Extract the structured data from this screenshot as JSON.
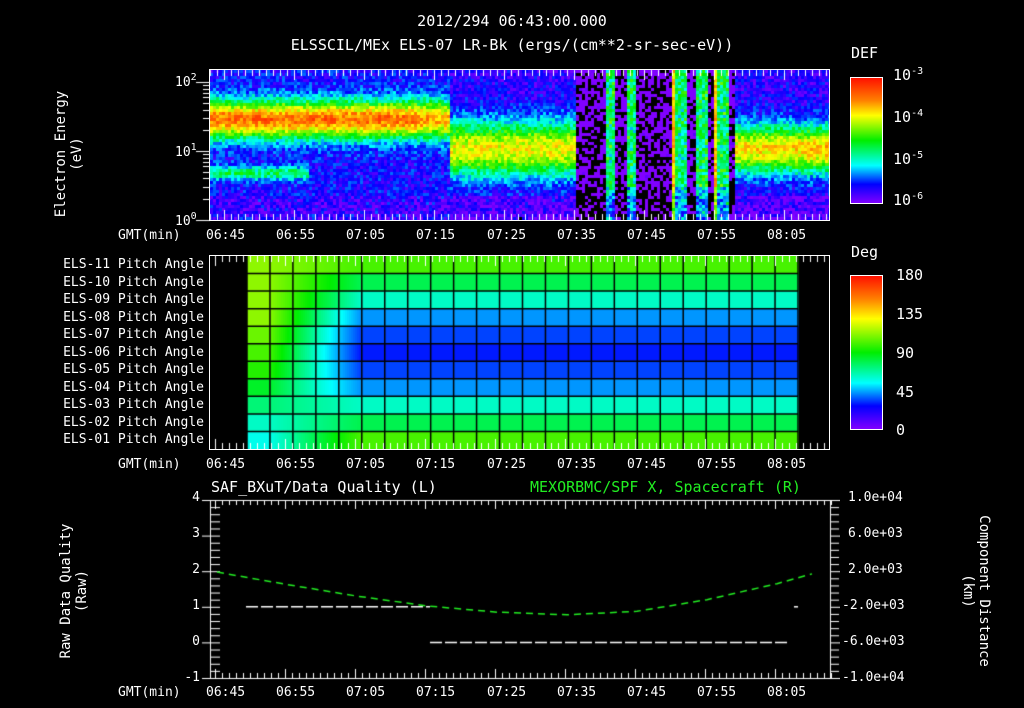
{
  "header": {
    "timestamp": "2012/294 06:43:00.000",
    "title": "ELSSCIL/MEx ELS-07 LR-Bk  (ergs/(cm**2-sr-sec-eV))"
  },
  "panel1": {
    "ylabel_line1": "Electron Energy",
    "ylabel_line2": "(eV)",
    "yticks": [
      "10",
      "10",
      "10"
    ],
    "ytick_exps": [
      "2",
      "1",
      "0"
    ],
    "colorbar_title": "DEF",
    "colorbar_ticks": [
      "10",
      "10",
      "10",
      "10"
    ],
    "colorbar_exps": [
      "-3",
      "-4",
      "-5",
      "-6"
    ],
    "xlabel": "GMT(min)",
    "xticks": [
      "06:45",
      "06:55",
      "07:05",
      "07:15",
      "07:25",
      "07:35",
      "07:45",
      "07:55",
      "08:05"
    ]
  },
  "panel2": {
    "rows": [
      "ELS-11 Pitch Angle",
      "ELS-10 Pitch Angle",
      "ELS-09 Pitch Angle",
      "ELS-08 Pitch Angle",
      "ELS-07 Pitch Angle",
      "ELS-06 Pitch Angle",
      "ELS-05 Pitch Angle",
      "ELS-04 Pitch Angle",
      "ELS-03 Pitch Angle",
      "ELS-02 Pitch Angle",
      "ELS-01 Pitch Angle"
    ],
    "colorbar_title": "Deg",
    "colorbar_ticks": [
      "180",
      "135",
      "90",
      "45",
      "0"
    ],
    "xlabel": "GMT(min)",
    "xticks": [
      "06:45",
      "06:55",
      "07:05",
      "07:15",
      "07:25",
      "07:35",
      "07:45",
      "07:55",
      "08:05"
    ]
  },
  "panel3": {
    "left_title": "SAF_BXuT/Data Quality (L)",
    "right_title": "MEXORBMC/SPF X, Spacecraft (R)",
    "ylabel_left_line1": "Raw Data Quality",
    "ylabel_left_line2": "(Raw)",
    "ylabel_right_line1": "Component Distance",
    "ylabel_right_line2": "(km)",
    "yticks_left": [
      "4",
      "3",
      "2",
      "1",
      "0",
      "-1"
    ],
    "yticks_right": [
      "1.0e+04",
      "6.0e+03",
      "2.0e+03",
      "-2.0e+03",
      "-6.0e+03",
      "-1.0e+04"
    ],
    "xlabel": "GMT(min)",
    "xticks": [
      "06:45",
      "06:55",
      "07:05",
      "07:15",
      "07:25",
      "07:35",
      "07:45",
      "07:55",
      "08:05"
    ]
  },
  "colors": {
    "background": "#000000",
    "axis": "#ffffff",
    "right_series": "#22ee22",
    "left_series": "#ffffff"
  },
  "chart_data": [
    {
      "type": "heatmap",
      "title": "ELSSCIL/MEx ELS-07 LR-Bk (ergs/(cm**2-sr-sec-eV))",
      "subtitle": "2012/294 06:43:00.000",
      "xlabel": "GMT(min)",
      "ylabel": "Electron Energy (eV)",
      "yscale": "log",
      "ylim": [
        1,
        150
      ],
      "xticks": [
        "06:45",
        "06:55",
        "07:05",
        "07:15",
        "07:25",
        "07:35",
        "07:45",
        "07:55",
        "08:05"
      ],
      "colorbar": {
        "label": "DEF",
        "scale": "log",
        "range": [
          1e-06,
          0.001
        ]
      },
      "features": [
        {
          "x_range": [
            "06:43",
            "07:17"
          ],
          "peak_energy_eV": 30,
          "level": "~3e-4 (orange/yellow)"
        },
        {
          "x_range": [
            "06:43",
            "06:57"
          ],
          "secondary_band_energy_eV": 5,
          "level": "~5e-5 (green)"
        },
        {
          "x_range": [
            "07:17",
            "07:35"
          ],
          "energy_range_eV": [
            4,
            40
          ],
          "level": "~1e-4 (green)"
        },
        {
          "x_range": [
            "07:39",
            "07:57"
          ],
          "description": "narrow vertical bursts, sparse background",
          "level": "1e-5 to 3e-4"
        },
        {
          "x_range": [
            "07:59",
            "08:10"
          ],
          "energy_range_eV": [
            5,
            40
          ],
          "level": "~1e-4 (green)"
        }
      ]
    },
    {
      "type": "heatmap",
      "xlabel": "GMT(min)",
      "categories": [
        "ELS-11",
        "ELS-10",
        "ELS-09",
        "ELS-08",
        "ELS-07",
        "ELS-06",
        "ELS-05",
        "ELS-04",
        "ELS-03",
        "ELS-02",
        "ELS-01"
      ],
      "colorbar": {
        "label": "Deg",
        "range": [
          0,
          180
        ],
        "ticks": [
          0,
          45,
          90,
          135,
          180
        ]
      },
      "data_x_range": [
        "06:48",
        "08:06"
      ],
      "steady_state_values_deg": [
        100,
        80,
        65,
        45,
        35,
        30,
        35,
        45,
        65,
        80,
        100
      ],
      "early_values_deg": [
        110,
        110,
        110,
        110,
        105,
        100,
        95,
        85,
        75,
        65,
        60
      ]
    },
    {
      "type": "line",
      "xlabel": "GMT(min)",
      "xticks": [
        "06:45",
        "06:55",
        "07:05",
        "07:15",
        "07:25",
        "07:35",
        "07:45",
        "07:55",
        "08:05"
      ],
      "series": [
        {
          "name": "SAF_BXuT/Data Quality (L)",
          "axis": "left",
          "ylim": [
            -1,
            4
          ],
          "points": [
            [
              "06:48",
              1
            ],
            [
              "07:13",
              1
            ],
            [
              "07:13",
              0
            ],
            [
              "08:04",
              0
            ],
            [
              "08:05",
              1
            ]
          ]
        },
        {
          "name": "MEXORBMC/SPF X, Spacecraft (R)",
          "axis": "right",
          "unit": "km",
          "ylim": [
            -10000,
            10000
          ],
          "points": [
            [
              "06:45",
              1900
            ],
            [
              "06:55",
              500
            ],
            [
              "07:05",
              -800
            ],
            [
              "07:15",
              -1900
            ],
            [
              "07:25",
              -2600
            ],
            [
              "07:35",
              -2900
            ],
            [
              "07:45",
              -2500
            ],
            [
              "07:55",
              -1200
            ],
            [
              "08:05",
              600
            ],
            [
              "08:10",
              1700
            ]
          ]
        }
      ]
    }
  ]
}
